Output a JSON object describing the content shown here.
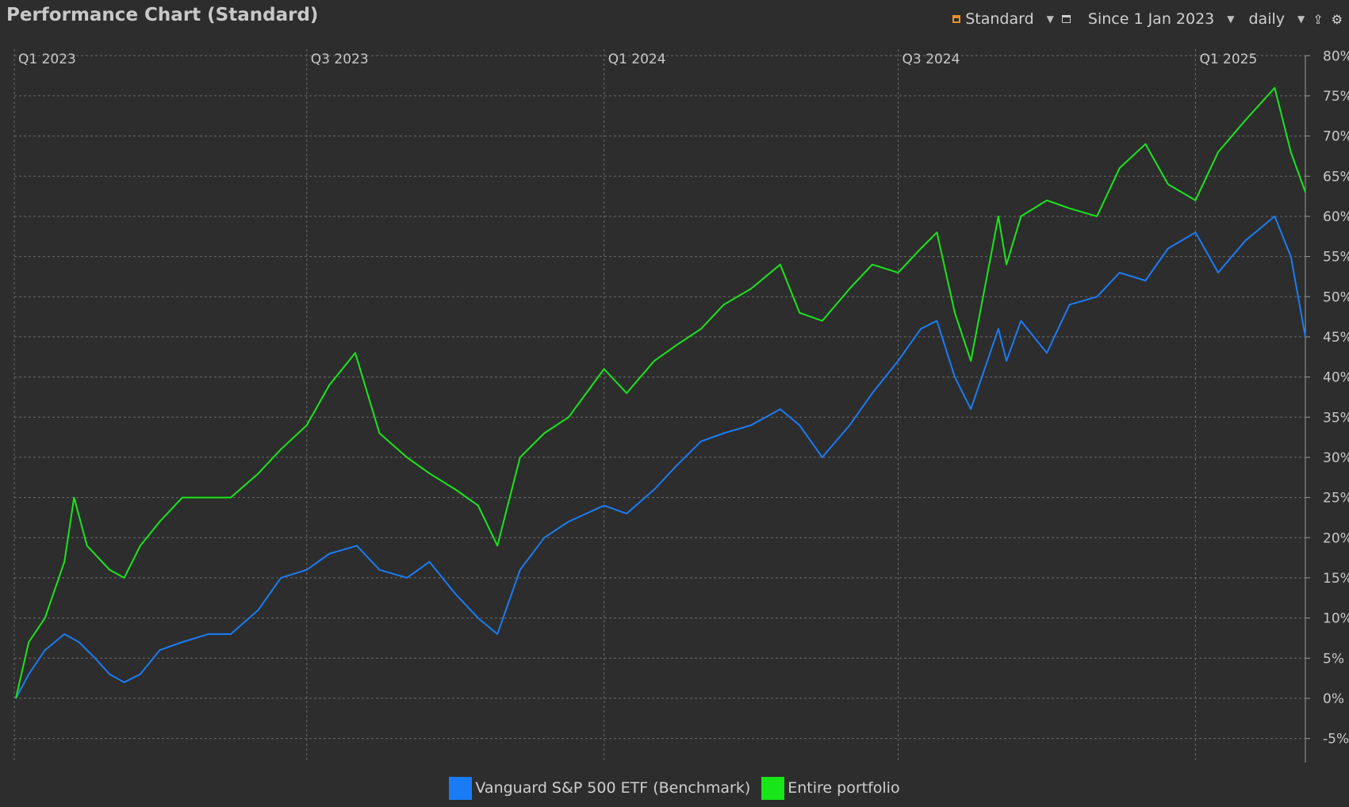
{
  "window": {
    "title": "Performance Chart (Standard)"
  },
  "toolbar": {
    "config_label": "Standard",
    "period_label": "Since 1 Jan 2023",
    "interval_label": "daily",
    "icons": [
      "calendar-icon",
      "chevron-down-icon",
      "window-icon",
      "export-icon",
      "gear-icon"
    ]
  },
  "colors": {
    "background": "#2d2d2d",
    "benchmark": "#1a7cf5",
    "portfolio": "#19e619",
    "grid": "#6a6a6a"
  },
  "chart_data": {
    "type": "line",
    "x_tick_labels": [
      "Q1 2023",
      "Q3 2023",
      "Q1 2024",
      "Q3 2024",
      "Q1 2025"
    ],
    "x_tick_dates": [
      "2023-01-01",
      "2023-07-01",
      "2024-01-01",
      "2024-07-01",
      "2025-01-01"
    ],
    "x_range": [
      "2023-01-01",
      "2025-03-10"
    ],
    "y_ticks": [
      -5,
      0,
      5,
      10,
      15,
      20,
      25,
      30,
      35,
      40,
      45,
      50,
      55,
      60,
      65,
      70,
      75,
      80
    ],
    "y_tick_labels": [
      "-5%",
      "0%",
      "5%",
      "10%",
      "15%",
      "20%",
      "25%",
      "30%",
      "35%",
      "40%",
      "45%",
      "50%",
      "55%",
      "60%",
      "65%",
      "70%",
      "75%",
      "80%"
    ],
    "ylim": [
      -8,
      82
    ],
    "grid": true,
    "legend_position": "bottom-center",
    "series": [
      {
        "name": "Vanguard S&P 500 ETF (Benchmark)",
        "color": "#1a7cf5",
        "x": [
          "2023-01-02",
          "2023-01-10",
          "2023-01-20",
          "2023-02-01",
          "2023-02-10",
          "2023-02-20",
          "2023-03-01",
          "2023-03-10",
          "2023-03-20",
          "2023-04-01",
          "2023-04-15",
          "2023-05-01",
          "2023-05-15",
          "2023-06-01",
          "2023-06-15",
          "2023-07-01",
          "2023-07-15",
          "2023-08-01",
          "2023-08-15",
          "2023-09-01",
          "2023-09-15",
          "2023-10-01",
          "2023-10-15",
          "2023-10-27",
          "2023-11-10",
          "2023-11-25",
          "2023-12-10",
          "2024-01-01",
          "2024-01-15",
          "2024-02-01",
          "2024-02-15",
          "2024-03-01",
          "2024-03-15",
          "2024-04-01",
          "2024-04-19",
          "2024-05-01",
          "2024-05-15",
          "2024-06-01",
          "2024-06-15",
          "2024-07-01",
          "2024-07-15",
          "2024-07-25",
          "2024-08-05",
          "2024-08-15",
          "2024-09-01",
          "2024-09-06",
          "2024-09-15",
          "2024-10-01",
          "2024-10-15",
          "2024-11-01",
          "2024-11-15",
          "2024-12-01",
          "2024-12-15",
          "2025-01-01",
          "2025-01-15",
          "2025-02-01",
          "2025-02-19",
          "2025-03-01",
          "2025-03-10"
        ],
        "values": [
          0,
          3,
          6,
          8,
          7,
          5,
          3,
          2,
          3,
          6,
          7,
          8,
          8,
          11,
          15,
          16,
          18,
          19,
          16,
          15,
          17,
          13,
          10,
          8,
          16,
          20,
          22,
          24,
          23,
          26,
          29,
          32,
          33,
          34,
          36,
          34,
          30,
          34,
          38,
          42,
          46,
          47,
          40,
          36,
          46,
          42,
          47,
          43,
          49,
          50,
          53,
          52,
          56,
          58,
          53,
          57,
          60,
          55,
          45
        ]
      },
      {
        "name": "Entire portfolio",
        "color": "#19e619",
        "x": [
          "2023-01-02",
          "2023-01-10",
          "2023-01-20",
          "2023-02-01",
          "2023-02-07",
          "2023-02-15",
          "2023-03-01",
          "2023-03-10",
          "2023-03-20",
          "2023-04-01",
          "2023-04-15",
          "2023-05-01",
          "2023-05-15",
          "2023-06-01",
          "2023-06-15",
          "2023-07-01",
          "2023-07-15",
          "2023-07-31",
          "2023-08-15",
          "2023-09-01",
          "2023-09-15",
          "2023-10-01",
          "2023-10-15",
          "2023-10-27",
          "2023-11-10",
          "2023-11-25",
          "2023-12-10",
          "2024-01-01",
          "2024-01-15",
          "2024-02-01",
          "2024-02-15",
          "2024-03-01",
          "2024-03-15",
          "2024-04-01",
          "2024-04-19",
          "2024-05-01",
          "2024-05-15",
          "2024-06-01",
          "2024-06-15",
          "2024-07-01",
          "2024-07-15",
          "2024-07-25",
          "2024-08-05",
          "2024-08-15",
          "2024-09-01",
          "2024-09-06",
          "2024-09-15",
          "2024-10-01",
          "2024-10-15",
          "2024-11-01",
          "2024-11-15",
          "2024-12-01",
          "2024-12-15",
          "2025-01-01",
          "2025-01-15",
          "2025-02-01",
          "2025-02-19",
          "2025-03-01",
          "2025-03-10"
        ],
        "values": [
          0,
          7,
          10,
          17,
          25,
          19,
          16,
          15,
          19,
          22,
          25,
          25,
          25,
          28,
          31,
          34,
          39,
          43,
          33,
          30,
          28,
          26,
          24,
          19,
          30,
          33,
          35,
          41,
          38,
          42,
          44,
          46,
          49,
          51,
          54,
          48,
          47,
          51,
          54,
          53,
          56,
          58,
          48,
          42,
          60,
          54,
          60,
          62,
          61,
          60,
          66,
          69,
          64,
          62,
          68,
          72,
          76,
          68,
          63
        ]
      }
    ]
  },
  "legend": {
    "items": [
      "Vanguard S&P 500 ETF (Benchmark)",
      "Entire portfolio"
    ]
  }
}
